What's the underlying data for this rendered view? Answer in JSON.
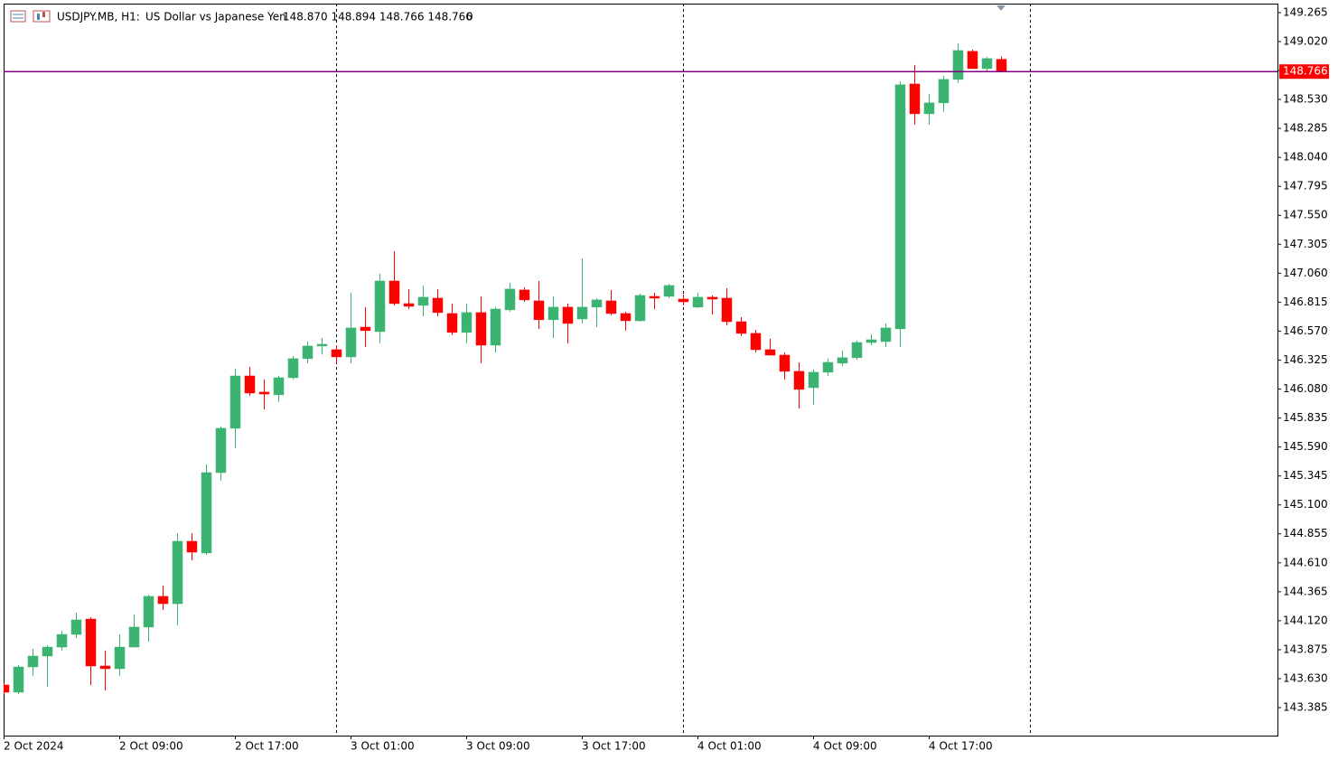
{
  "chart_data": {
    "type": "candlestick",
    "symbol": "USDJPY.MB, H1:",
    "description": "US Dollar vs Japanese Yen",
    "quote": "148.870 148.894 148.766 148.766",
    "volume": "0",
    "up_color": "#3cb371",
    "down_color": "#ff0000",
    "categories": [
      "2 Oct 2024",
      null,
      null,
      null,
      null,
      null,
      null,
      null,
      "2 Oct 09:00",
      null,
      null,
      null,
      null,
      null,
      null,
      null,
      "2 Oct 17:00",
      null,
      null,
      null,
      null,
      null,
      null,
      null,
      "3 Oct 01:00",
      null,
      null,
      null,
      null,
      null,
      null,
      null,
      "3 Oct 09:00",
      null,
      null,
      null,
      null,
      null,
      null,
      null,
      "3 Oct 17:00",
      null,
      null,
      null,
      null,
      null,
      null,
      null,
      "4 Oct 01:00",
      null,
      null,
      null,
      null,
      null,
      null,
      null,
      "4 Oct 09:00",
      null,
      null,
      null,
      null,
      null,
      null,
      null,
      "4 Oct 17:00",
      null,
      null,
      null,
      null,
      null
    ],
    "open": [
      143.576,
      143.515,
      143.729,
      143.821,
      143.897,
      144.004,
      144.134,
      143.737,
      143.714,
      143.897,
      144.066,
      144.326,
      144.264,
      144.792,
      144.693,
      145.373,
      145.748,
      146.191,
      146.054,
      146.031,
      146.176,
      146.337,
      146.444,
      146.413,
      146.352,
      146.604,
      146.566,
      146.994,
      146.803,
      146.788,
      146.849,
      146.719,
      146.559,
      146.727,
      146.451,
      146.75,
      146.918,
      146.826,
      146.666,
      146.773,
      146.673,
      146.773,
      146.826,
      146.719,
      146.658,
      146.864,
      146.864,
      146.841,
      146.773,
      146.857,
      146.849,
      146.65,
      146.551,
      146.413,
      146.367,
      146.23,
      146.092,
      146.222,
      146.299,
      146.345,
      146.474,
      146.482,
      146.589,
      148.661,
      148.409,
      148.501,
      148.7,
      148.937,
      148.791,
      148.87
    ],
    "high": [
      143.591,
      143.744,
      143.882,
      143.913,
      144.035,
      144.188,
      144.15,
      143.867,
      144.004,
      144.173,
      144.341,
      144.417,
      144.861,
      144.861,
      145.442,
      145.763,
      146.253,
      146.268,
      146.161,
      146.191,
      146.36,
      146.482,
      146.513,
      146.451,
      146.895,
      146.773,
      147.056,
      147.247,
      146.926,
      146.956,
      146.926,
      146.803,
      146.803,
      146.864,
      146.773,
      146.979,
      146.941,
      146.994,
      146.864,
      146.803,
      147.186,
      146.849,
      146.918,
      146.734,
      146.887,
      146.895,
      146.971,
      146.88,
      146.895,
      146.872,
      146.933,
      146.688,
      146.581,
      146.505,
      146.39,
      146.306,
      146.245,
      146.337,
      146.406,
      146.49,
      146.543,
      146.635,
      148.684,
      148.822,
      148.577,
      148.73,
      149.005,
      148.952,
      148.891,
      148.894
    ],
    "low": [
      143.5,
      143.5,
      143.653,
      143.561,
      143.867,
      143.974,
      143.576,
      143.53,
      143.653,
      143.897,
      143.943,
      144.211,
      144.081,
      144.631,
      144.677,
      145.304,
      145.58,
      146.023,
      145.908,
      145.97,
      146.161,
      146.299,
      146.375,
      146.299,
      146.299,
      146.436,
      146.467,
      146.788,
      146.757,
      146.696,
      146.696,
      146.536,
      146.467,
      146.299,
      146.39,
      146.734,
      146.818,
      146.589,
      146.513,
      146.467,
      146.635,
      146.604,
      146.704,
      146.574,
      146.65,
      146.757,
      146.849,
      146.788,
      146.765,
      146.711,
      146.62,
      146.528,
      146.39,
      146.367,
      146.161,
      145.916,
      145.947,
      146.191,
      146.276,
      146.329,
      146.451,
      146.436,
      146.436,
      148.317,
      148.317,
      148.424,
      148.669,
      148.791,
      148.761,
      148.766
    ],
    "close": [
      143.515,
      143.729,
      143.821,
      143.897,
      144.004,
      144.127,
      143.737,
      143.714,
      143.897,
      144.066,
      144.326,
      144.264,
      144.792,
      144.7,
      145.373,
      145.748,
      146.191,
      146.046,
      146.038,
      146.176,
      146.337,
      146.444,
      146.459,
      146.352,
      146.597,
      146.574,
      146.994,
      146.803,
      146.78,
      146.857,
      146.727,
      146.559,
      146.727,
      146.451,
      146.757,
      146.926,
      146.834,
      146.666,
      146.773,
      146.635,
      146.773,
      146.834,
      146.719,
      146.658,
      146.872,
      146.849,
      146.956,
      146.818,
      146.857,
      146.841,
      146.65,
      146.551,
      146.413,
      146.367,
      146.23,
      146.077,
      146.222,
      146.306,
      146.345,
      146.474,
      146.497,
      146.597,
      148.654,
      148.409,
      148.501,
      148.7,
      148.944,
      148.791,
      148.876,
      148.766
    ],
    "ylim": [
      143.148,
      149.341
    ],
    "yticks": [
      149.265,
      {
        "value": 149.02,
        "label": "149.020"
      },
      148.775,
      {
        "value": 148.53,
        "label": "148.530"
      },
      148.285,
      {
        "value": 148.04,
        "label": "148.040"
      },
      147.795,
      {
        "value": 147.55,
        "label": "147.550"
      },
      147.305,
      {
        "value": 147.06,
        "label": "147.060"
      },
      146.815,
      {
        "value": 146.57,
        "label": "146.570"
      },
      146.325,
      {
        "value": 146.08,
        "label": "146.080"
      },
      145.835,
      {
        "value": 145.59,
        "label": "145.590"
      },
      145.345,
      {
        "value": 145.1,
        "label": "145.100"
      },
      144.855,
      {
        "value": 144.61,
        "label": "144.610"
      },
      144.365,
      {
        "value": 144.12,
        "label": "144.120"
      },
      143.875,
      {
        "value": 143.63,
        "label": "143.630"
      },
      143.385
    ],
    "price_line": {
      "value": 148.766,
      "color": "#800080",
      "label_color": "#ff0000"
    }
  }
}
